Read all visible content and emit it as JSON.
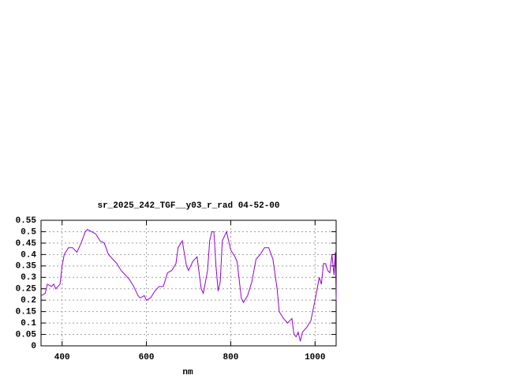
{
  "chart_data": {
    "type": "line",
    "title": "sr_2025_242_TGF__y03_r_rad 04-52-00",
    "x_label": "nm",
    "xlim": [
      350,
      1050
    ],
    "xticks": [
      400,
      600,
      800,
      1000
    ],
    "ylim": [
      0,
      0.55
    ],
    "yticks": [
      0,
      0.05,
      0.1,
      0.15,
      0.2,
      0.25,
      0.3,
      0.35,
      0.4,
      0.45,
      0.5,
      0.55
    ],
    "grid": true,
    "series": [
      {
        "color": "#9400d3",
        "x": [
          350,
          360,
          365,
          375,
          380,
          385,
          395,
          400,
          405,
          415,
          425,
          435,
          445,
          455,
          460,
          470,
          480,
          490,
          500,
          510,
          520,
          530,
          540,
          550,
          560,
          570,
          580,
          585,
          595,
          600,
          610,
          620,
          630,
          640,
          650,
          660,
          670,
          675,
          685,
          695,
          700,
          710,
          720,
          730,
          735,
          745,
          750,
          755,
          760,
          765,
          770,
          775,
          780,
          790,
          800,
          810,
          815,
          825,
          830,
          840,
          850,
          860,
          870,
          880,
          890,
          900,
          910,
          915,
          925,
          935,
          945,
          950,
          955,
          960,
          965,
          970,
          980,
          990,
          1000,
          1005,
          1010,
          1015,
          1020,
          1025,
          1030,
          1035,
          1040,
          1045,
          1048,
          1050
        ],
        "values": [
          0.22,
          0.23,
          0.27,
          0.26,
          0.27,
          0.25,
          0.27,
          0.35,
          0.4,
          0.43,
          0.43,
          0.41,
          0.45,
          0.5,
          0.51,
          0.5,
          0.49,
          0.46,
          0.45,
          0.4,
          0.38,
          0.36,
          0.33,
          0.31,
          0.29,
          0.26,
          0.22,
          0.21,
          0.22,
          0.2,
          0.21,
          0.24,
          0.26,
          0.26,
          0.32,
          0.33,
          0.36,
          0.43,
          0.46,
          0.35,
          0.33,
          0.37,
          0.39,
          0.25,
          0.23,
          0.33,
          0.46,
          0.5,
          0.5,
          0.35,
          0.24,
          0.28,
          0.46,
          0.5,
          0.42,
          0.39,
          0.37,
          0.21,
          0.19,
          0.22,
          0.28,
          0.38,
          0.4,
          0.43,
          0.43,
          0.38,
          0.25,
          0.15,
          0.12,
          0.1,
          0.12,
          0.05,
          0.04,
          0.06,
          0.02,
          0.06,
          0.08,
          0.11,
          0.2,
          0.25,
          0.3,
          0.27,
          0.36,
          0.36,
          0.33,
          0.32,
          0.4,
          0.31,
          0.41,
          0.2
        ]
      }
    ]
  }
}
